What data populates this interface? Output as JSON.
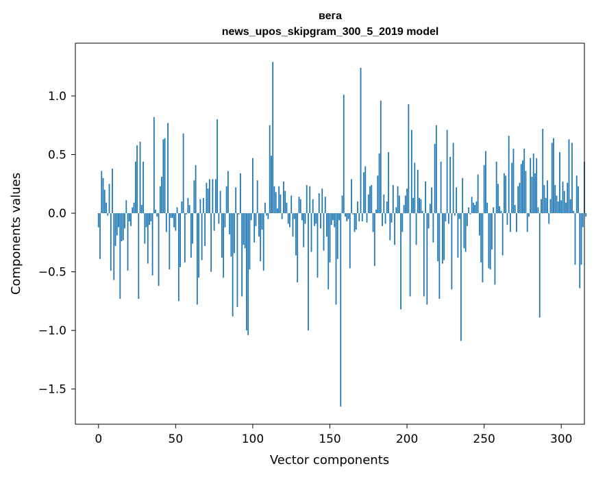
{
  "chart_data": {
    "type": "bar",
    "title_line1": "вега",
    "title_line2": "news_upos_skipgram_300_5_2019 model",
    "xlabel": "Vector components",
    "ylabel": "Components values",
    "xlim": [
      -15,
      315
    ],
    "ylim": [
      -1.8,
      1.45
    ],
    "xticks": [
      0,
      50,
      100,
      150,
      200,
      250,
      300
    ],
    "xtick_labels": [
      "0",
      "50",
      "100",
      "150",
      "200",
      "250",
      "300"
    ],
    "yticks": [
      -1.5,
      -1.0,
      -0.5,
      0.0,
      0.5,
      1.0
    ],
    "ytick_labels": [
      "−1.5",
      "−1.0",
      "−0.5",
      "0.0",
      "0.5",
      "1.0"
    ],
    "bar_color": "#1f77b4",
    "values": [
      -0.12,
      -0.39,
      0.36,
      0.3,
      0.2,
      0.09,
      -0.02,
      0.25,
      -0.49,
      0.38,
      -0.57,
      -0.28,
      -0.19,
      -0.12,
      -0.73,
      -0.24,
      -0.23,
      -0.13,
      0.11,
      -0.49,
      -0.07,
      -0.11,
      0.05,
      0.09,
      0.44,
      0.58,
      -0.73,
      0.61,
      0.07,
      0.44,
      -0.26,
      -0.12,
      -0.43,
      -0.1,
      -0.07,
      -0.53,
      0.82,
      0.03,
      -0.03,
      -0.62,
      0.23,
      0.31,
      0.63,
      0.64,
      -0.16,
      0.77,
      -0.48,
      -0.04,
      -0.04,
      -0.12,
      -0.15,
      0.05,
      -0.75,
      -0.46,
      0.1,
      0.68,
      -0.42,
      -0.01,
      0.13,
      0.07,
      -0.38,
      -0.26,
      0.28,
      0.41,
      -0.78,
      -0.55,
      0.12,
      -0.4,
      0.13,
      -0.28,
      0.26,
      0.21,
      0.29,
      -0.5,
      0.29,
      -0.15,
      0.29,
      0.8,
      -0.09,
      0.19,
      -0.38,
      -0.55,
      -0.12,
      0.23,
      0.36,
      -0.18,
      -0.37,
      -0.88,
      -0.34,
      0.22,
      -0.8,
      -0.01,
      0.34,
      -0.71,
      -0.27,
      -0.3,
      -1.0,
      -1.04,
      -0.48,
      -0.06,
      0.47,
      -0.25,
      -0.11,
      0.28,
      -0.2,
      -0.41,
      -0.14,
      -0.49,
      0.09,
      -0.02,
      -0.05,
      0.75,
      0.49,
      1.29,
      0.23,
      0.18,
      0.04,
      0.23,
      0.16,
      -0.05,
      0.27,
      0.19,
      0.09,
      -0.09,
      -0.12,
      0.15,
      -0.2,
      -0.05,
      -0.36,
      -0.59,
      0.14,
      0.12,
      -0.06,
      -0.29,
      -0.09,
      0.24,
      -1.0,
      0.23,
      -0.33,
      0.12,
      -0.11,
      -0.09,
      -0.55,
      0.17,
      -0.13,
      0.21,
      -0.32,
      0.14,
      -0.2,
      -0.65,
      -0.42,
      -0.1,
      -0.06,
      -0.12,
      -0.78,
      -0.39,
      -0.06,
      -1.65,
      0.15,
      1.01,
      -0.03,
      -0.07,
      -0.05,
      -0.47,
      0.29,
      -0.01,
      -0.16,
      -0.14,
      0.1,
      -0.07,
      1.24,
      -0.07,
      0.35,
      0.4,
      -0.08,
      0.16,
      0.23,
      0.24,
      -0.16,
      -0.45,
      0.03,
      0.32,
      0.51,
      0.96,
      -0.11,
      0.16,
      -0.09,
      0.1,
      0.52,
      -0.23,
      -0.08,
      0.24,
      -0.27,
      0.05,
      0.23,
      0.15,
      -0.82,
      -0.16,
      0.07,
      0.15,
      0.21,
      0.93,
      -0.71,
      0.71,
      0.13,
      0.43,
      -0.27,
      0.37,
      0.13,
      0.12,
      0.02,
      -0.71,
      0.27,
      -0.78,
      -0.13,
      0.08,
      0.22,
      -0.25,
      0.59,
      0.75,
      -0.41,
      -0.73,
      0.44,
      -0.43,
      -0.4,
      -0.07,
      0.71,
      -0.09,
      0.48,
      -0.65,
      0.6,
      -0.02,
      0.22,
      -0.38,
      -0.05,
      -1.09,
      0.3,
      -0.3,
      -0.33,
      -0.11,
      0.05,
      -0.01,
      0.14,
      0.09,
      0.07,
      0.1,
      0.33,
      -0.19,
      -0.42,
      -0.59,
      0.41,
      0.53,
      0.09,
      -0.47,
      -0.48,
      -0.31,
      0.05,
      -0.61,
      0.44,
      0.25,
      0.06,
      0.02,
      -0.36,
      0.34,
      0.32,
      -0.1,
      0.66,
      -0.16,
      0.43,
      0.55,
      0.07,
      -0.16,
      0.23,
      0.26,
      0.42,
      0.45,
      0.55,
      0.36,
      -0.16,
      -0.03,
      0.47,
      0.31,
      0.51,
      0.34,
      0.47,
      0.05,
      -0.89,
      0.12,
      0.72,
      0.24,
      0.13,
      0.28,
      -0.09,
      0.12,
      0.6,
      0.64,
      0.24,
      0.15,
      0.1,
      0.52,
      0.11,
      0.27,
      0.19,
      0.09,
      0.26,
      0.63,
      0.12,
      0.6,
      0.02,
      -0.44,
      0.32,
      0.23,
      -0.64,
      -0.44,
      -0.12,
      0.44,
      -0.03
    ]
  }
}
